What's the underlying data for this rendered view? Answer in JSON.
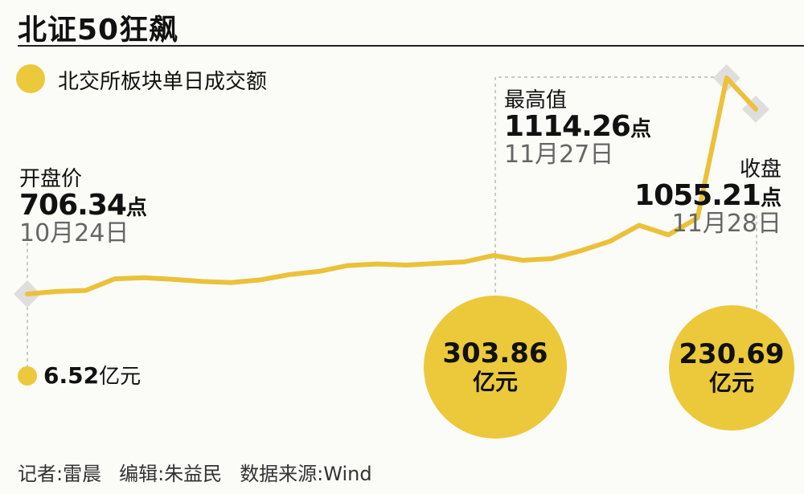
{
  "title": "北证50狂飙",
  "legend": {
    "label": "北交所板块单日成交额"
  },
  "colors": {
    "accent": "#ebc93b",
    "line": "#ecc13a",
    "guide": "#aaaaaa",
    "diamond": "#dedede"
  },
  "annotations": {
    "open": {
      "label": "开盘价",
      "value": "706.34",
      "unit": "点",
      "date": "10月24日"
    },
    "high": {
      "label": "最高值",
      "value": "1114.26",
      "unit": "点",
      "date": "11月27日"
    },
    "close": {
      "label": "收盘",
      "value": "1055.21",
      "unit": "点",
      "date": "11月28日"
    }
  },
  "volumes": {
    "start": {
      "value": "6.52",
      "unit": "亿元"
    },
    "peak": {
      "value": "303.86",
      "unit": "亿元"
    },
    "end": {
      "value": "230.69",
      "unit": "亿元"
    }
  },
  "footer": {
    "reporter": "记者:雷晨",
    "editor": "编辑:朱益民",
    "source": "数据来源:Wind"
  },
  "chart_data": {
    "type": "line",
    "title": "北证50狂飙",
    "x_start": "10月24日",
    "x_end": "11月28日",
    "series": [
      {
        "name": "北证50",
        "values": [
          706.34,
          711,
          713,
          735,
          737,
          734,
          730,
          728,
          733,
          743,
          749,
          760,
          763,
          761,
          764,
          767,
          779,
          770,
          773,
          788,
          806,
          836,
          818,
          850,
          1114.26,
          1055.21
        ]
      }
    ],
    "bubbles": [
      {
        "name": "北交所板块单日成交额",
        "values": [
          6.52,
          303.86,
          230.69
        ],
        "unit": "亿元"
      }
    ],
    "grid": false
  }
}
